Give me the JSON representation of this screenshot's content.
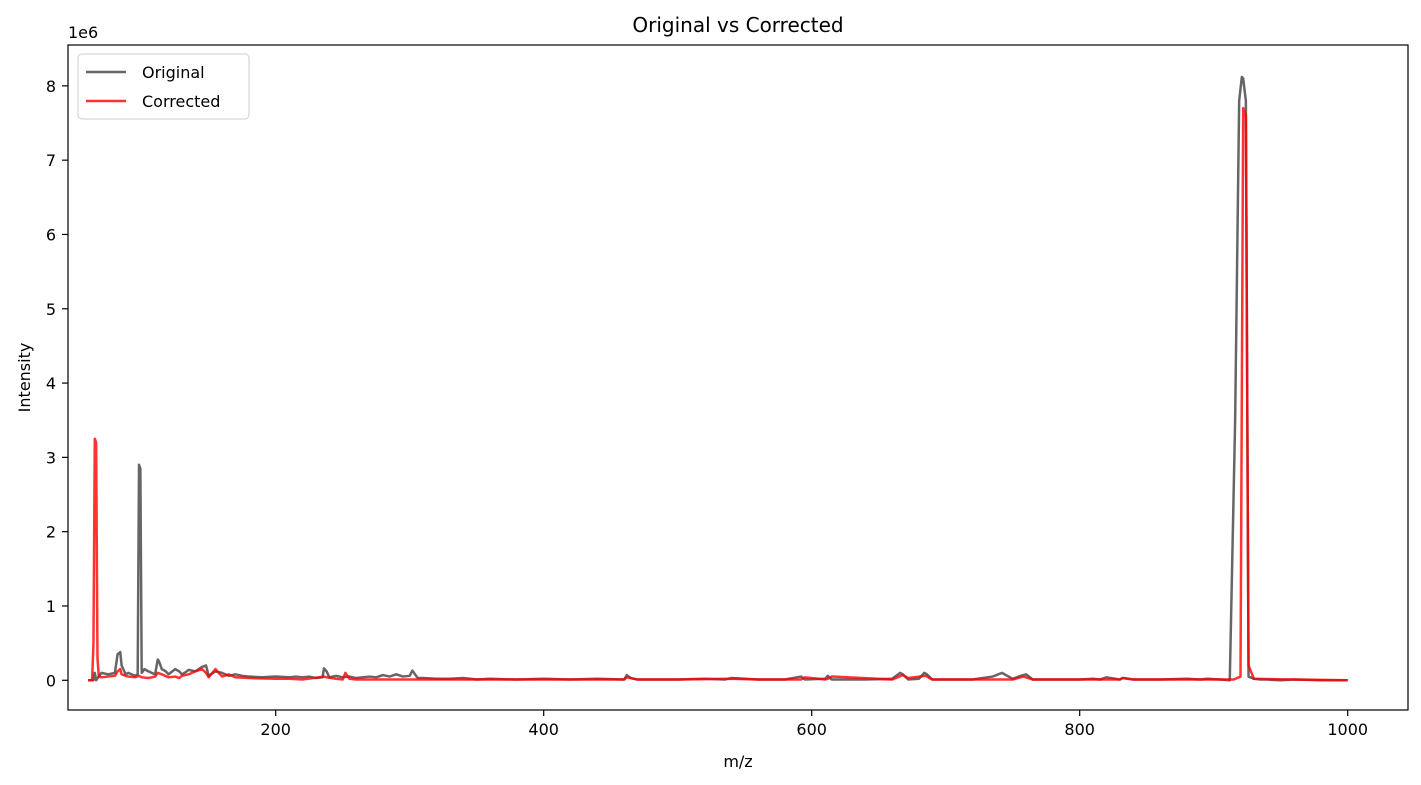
{
  "chart_data": {
    "type": "line",
    "title": "Original vs Corrected",
    "xlabel": "m/z",
    "ylabel": "Intensity",
    "y_offset_label": "1e6",
    "xlim": [
      45,
      1045
    ],
    "ylim": [
      -0.4,
      8.55
    ],
    "x_ticks": [
      200,
      400,
      600,
      800,
      1000
    ],
    "y_ticks": [
      0,
      1,
      2,
      3,
      4,
      5,
      6,
      7,
      8
    ],
    "grid": false,
    "legend_position": "top-left",
    "series": [
      {
        "name": "Original",
        "color": "#000000",
        "opacity": 0.6,
        "x": [
          60,
          64,
          65,
          66,
          68,
          70,
          75,
          80,
          82,
          84,
          85,
          88,
          90,
          95,
          97,
          98,
          99,
          100,
          102,
          105,
          110,
          112,
          113,
          115,
          118,
          120,
          125,
          128,
          130,
          132,
          135,
          140,
          145,
          148,
          150,
          155,
          160,
          165,
          170,
          175,
          180,
          190,
          200,
          210,
          215,
          220,
          225,
          230,
          235,
          236,
          238,
          240,
          245,
          250,
          255,
          260,
          270,
          275,
          280,
          285,
          290,
          295,
          300,
          302,
          304,
          306,
          310,
          320,
          330,
          340,
          350,
          360,
          380,
          400,
          420,
          440,
          460,
          462,
          465,
          470,
          480,
          500,
          520,
          535,
          540,
          560,
          580,
          592,
          595,
          610,
          612,
          615,
          640,
          660,
          666,
          668,
          672,
          680,
          684,
          686,
          690,
          700,
          720,
          735,
          742,
          750,
          756,
          760,
          765,
          780,
          800,
          810,
          815,
          820,
          830,
          832,
          840,
          860,
          880,
          890,
          895,
          905,
          912,
          916,
          919,
          921,
          922,
          924,
          926,
          930,
          935,
          940,
          950,
          960,
          980,
          1000
        ],
        "values": [
          0,
          0,
          0.1,
          0,
          0.05,
          0.1,
          0.08,
          0.1,
          0.35,
          0.38,
          0.2,
          0.08,
          0.1,
          0.06,
          0.08,
          2.9,
          2.85,
          0.1,
          0.15,
          0.12,
          0.08,
          0.28,
          0.25,
          0.15,
          0.12,
          0.08,
          0.15,
          0.12,
          0.08,
          0.1,
          0.14,
          0.12,
          0.18,
          0.2,
          0.06,
          0.12,
          0.1,
          0.06,
          0.08,
          0.06,
          0.05,
          0.04,
          0.05,
          0.04,
          0.05,
          0.04,
          0.05,
          0.03,
          0.04,
          0.16,
          0.12,
          0.04,
          0.06,
          0.04,
          0.05,
          0.03,
          0.05,
          0.04,
          0.07,
          0.05,
          0.08,
          0.05,
          0.06,
          0.13,
          0.08,
          0.03,
          0.03,
          0.02,
          0.02,
          0.03,
          0.01,
          0.02,
          0.01,
          0.02,
          0.01,
          0.02,
          0.01,
          0.07,
          0.03,
          0.01,
          0.01,
          0.01,
          0.02,
          0.01,
          0.03,
          0.01,
          0.01,
          0.05,
          0.01,
          0.02,
          0.06,
          0.01,
          0.01,
          0.02,
          0.1,
          0.08,
          0.01,
          0.02,
          0.1,
          0.08,
          0.01,
          0.01,
          0.01,
          0.05,
          0.1,
          0.02,
          0.06,
          0.08,
          0.01,
          0.01,
          0.01,
          0.02,
          0.01,
          0.04,
          0.01,
          0.03,
          0.01,
          0.01,
          0.02,
          0.01,
          0.02,
          0.01,
          0,
          3.5,
          7.8,
          8.12,
          8.1,
          7.8,
          0.05,
          0.02,
          0.01,
          0.01,
          0,
          0.01,
          0,
          0
        ]
      },
      {
        "name": "Corrected",
        "color": "#ff0000",
        "opacity": 0.8,
        "x": [
          60,
          63,
          64,
          65,
          66,
          67,
          68,
          70,
          75,
          80,
          82,
          84,
          85,
          88,
          90,
          95,
          98,
          100,
          105,
          110,
          112,
          115,
          120,
          125,
          128,
          130,
          135,
          140,
          145,
          148,
          150,
          155,
          160,
          165,
          170,
          180,
          200,
          210,
          220,
          236,
          238,
          245,
          250,
          252,
          255,
          260,
          280,
          300,
          320,
          350,
          400,
          450,
          460,
          462,
          470,
          500,
          540,
          560,
          592,
          595,
          610,
          612,
          615,
          660,
          668,
          672,
          685,
          690,
          750,
          758,
          765,
          800,
          830,
          832,
          840,
          900,
          915,
          920,
          922,
          924,
          926,
          930,
          960,
          1000
        ],
        "values": [
          0,
          0,
          0.5,
          3.25,
          3.2,
          0.3,
          0.05,
          0.04,
          0.05,
          0.06,
          0.12,
          0.15,
          0.08,
          0.06,
          0.05,
          0.04,
          0.06,
          0.04,
          0.03,
          0.05,
          0.1,
          0.08,
          0.04,
          0.05,
          0.03,
          0.06,
          0.08,
          0.12,
          0.15,
          0.1,
          0.04,
          0.15,
          0.05,
          0.08,
          0.04,
          0.03,
          0.02,
          0.02,
          0.01,
          0.05,
          0.04,
          0.02,
          0.01,
          0.1,
          0.02,
          0.01,
          0.01,
          0.01,
          0.01,
          0.01,
          0.01,
          0.01,
          0.01,
          0.04,
          0.01,
          0.01,
          0.02,
          0.01,
          0.01,
          0.04,
          0.01,
          0.02,
          0.05,
          0.01,
          0.07,
          0.03,
          0.06,
          0.01,
          0.01,
          0.05,
          0.01,
          0.01,
          0.01,
          0.03,
          0.01,
          0.01,
          0.01,
          0.05,
          7.7,
          7.6,
          0.2,
          0.02,
          0.01,
          0
        ]
      }
    ]
  }
}
